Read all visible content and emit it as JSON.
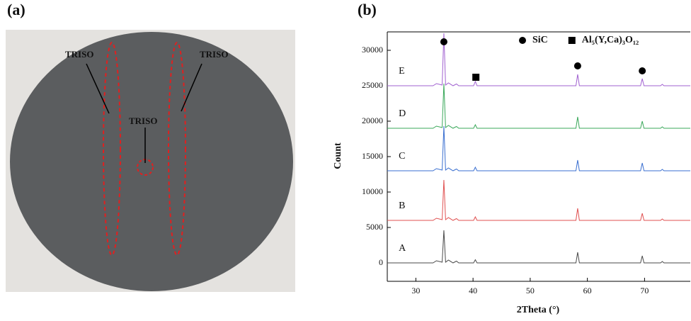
{
  "panel_labels": [
    "(a)",
    "(b)"
  ],
  "photo": {
    "labels": [
      "TRISO",
      "TRISO",
      "TRISO"
    ]
  },
  "chart_data": {
    "type": "line",
    "x_label": "2Theta (°)",
    "y_label": "Count",
    "x": [
      25,
      33,
      33.6,
      34.6,
      34.9,
      35.2,
      35.7,
      36.5,
      37.1,
      37.5,
      40.1,
      40.4,
      40.7,
      58.0,
      58.3,
      58.6,
      69.3,
      69.6,
      69.9,
      72.8,
      73.1,
      73.4,
      78
    ],
    "series": [
      {
        "name": "A",
        "color": "#4a4a4a",
        "values": [
          0,
          0,
          300,
          100,
          4600,
          100,
          400,
          0,
          250,
          0,
          0,
          450,
          0,
          0,
          1500,
          0,
          0,
          1000,
          0,
          0,
          200,
          0,
          0
        ]
      },
      {
        "name": "B",
        "color": "#e05050",
        "values": [
          6000,
          6000,
          6300,
          6100,
          11700,
          6100,
          6400,
          6000,
          6250,
          6000,
          6000,
          6500,
          6000,
          6000,
          7700,
          6000,
          6000,
          7000,
          6000,
          6000,
          6200,
          6000,
          6000
        ]
      },
      {
        "name": "C",
        "color": "#3a6fd0",
        "values": [
          13000,
          13000,
          13300,
          13100,
          19300,
          13100,
          13400,
          13000,
          13250,
          13000,
          13000,
          13500,
          13000,
          13000,
          14500,
          13000,
          13000,
          14100,
          13000,
          13000,
          13200,
          13000,
          13000
        ]
      },
      {
        "name": "D",
        "color": "#3aa85a",
        "values": [
          19000,
          19000,
          19300,
          19100,
          25300,
          19100,
          19400,
          19000,
          19250,
          19000,
          19000,
          19500,
          19000,
          19000,
          20600,
          19000,
          19000,
          20000,
          19000,
          19000,
          19200,
          19000,
          19000
        ]
      },
      {
        "name": "E",
        "color": "#a060d0",
        "values": [
          25000,
          25000,
          25300,
          25100,
          32400,
          25100,
          25400,
          25000,
          25250,
          25000,
          25000,
          25600,
          25000,
          25000,
          26600,
          25000,
          25000,
          26000,
          25000,
          25000,
          25200,
          25000,
          25000
        ]
      }
    ],
    "label_positions": {
      "x": [
        27,
        27,
        27,
        27,
        27
      ],
      "y": [
        2000,
        8000,
        15000,
        21000,
        27000
      ]
    },
    "phase_markers": [
      {
        "shape": "circle",
        "x": 34.9,
        "y": 31200
      },
      {
        "shape": "circle",
        "x": 58.3,
        "y": 27800
      },
      {
        "shape": "circle",
        "x": 69.6,
        "y": 27100
      },
      {
        "shape": "square",
        "x": 40.5,
        "y": 26200
      }
    ],
    "legend": [
      {
        "shape": "circle",
        "label": "SiC"
      },
      {
        "shape": "square",
        "label": "Al₅(Y,Ca)₃O₁₂"
      }
    ],
    "xlim": [
      25,
      78
    ],
    "ylim": [
      -2600,
      32600
    ],
    "xticks": [
      30,
      40,
      50,
      60,
      70
    ],
    "yticks": [
      0,
      5000,
      10000,
      15000,
      20000,
      25000,
      30000
    ]
  }
}
